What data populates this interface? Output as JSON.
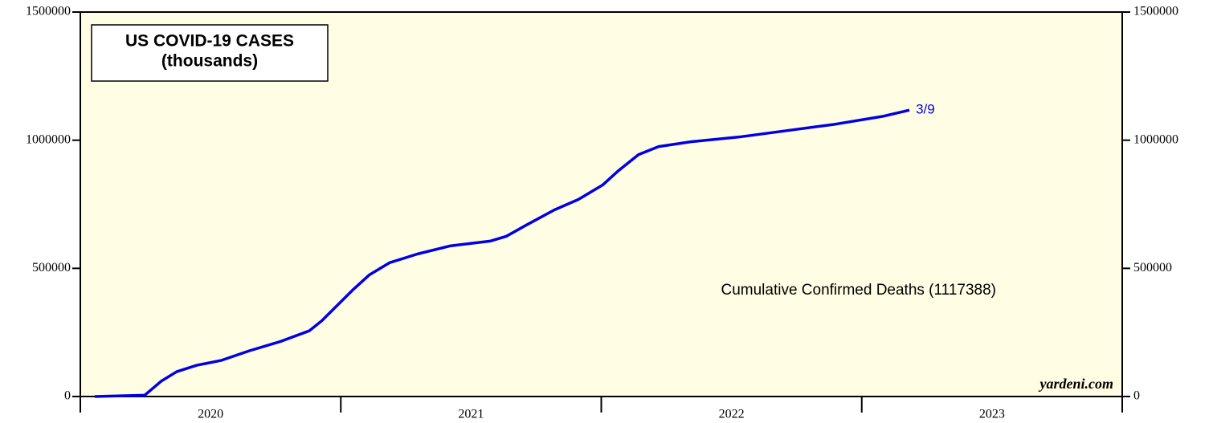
{
  "chart_data": {
    "type": "line",
    "title": "US COVID-19 CASES",
    "subtitle": "(thousands)",
    "annotation": "Cumulative Confirmed Deaths (1117388)",
    "end_label": "3/9",
    "source": "yardeni.com",
    "xlim": [
      2020,
      2024
    ],
    "xticks": [
      2020,
      2021,
      2022,
      2023
    ],
    "ylim": [
      0,
      1500000
    ],
    "yticks": [
      0,
      500000,
      1000000,
      1500000
    ],
    "series": [
      {
        "name": "Cumulative Confirmed Deaths",
        "color": "#0000e6",
        "x": [
          2020.055,
          2020.247,
          2020.31,
          2020.37,
          2020.447,
          2020.54,
          2020.648,
          2020.771,
          2020.879,
          2020.925,
          2020.987,
          2021.049,
          2021.11,
          2021.187,
          2021.295,
          2021.419,
          2021.573,
          2021.635,
          2021.712,
          2021.82,
          2021.912,
          2022.005,
          2022.066,
          2022.143,
          2022.22,
          2022.344,
          2022.529,
          2022.714,
          2022.899,
          2023.084,
          2023.183
        ],
        "values": [
          0,
          5000,
          59375,
          96875,
          121875,
          140625,
          178125,
          215625,
          256250,
          293750,
          356250,
          418750,
          475000,
          521875,
          556250,
          587500,
          606250,
          625000,
          668750,
          728125,
          768750,
          825000,
          881250,
          943750,
          975000,
          993750,
          1012500,
          1037500,
          1062500,
          1093750,
          1117388
        ]
      }
    ]
  }
}
